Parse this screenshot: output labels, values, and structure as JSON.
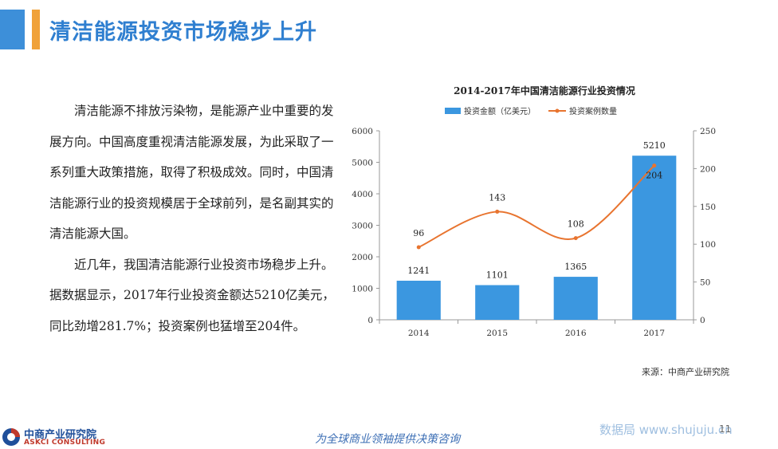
{
  "slide": {
    "title": "清洁能源投资市场稳步上升",
    "paragraphs": [
      "清洁能源不排放污染物，是能源产业中重要的发展方向。中国高度重视清洁能源发展，为此采取了一系列重大政策措施，取得了积极成效。同时，中国清洁能源行业的投资规模居于全球前列，是名副其实的清洁能源大国。",
      "近几年，我国清洁能源行业投资市场稳步上升。据数据显示，2017年行业投资金额达5210亿美元，同比劲增281.7%；投资案例也猛增至204件。"
    ],
    "source": "来源：中商产业研究院",
    "slogan": "为全球商业领袖提供决策咨询",
    "watermark": "数据局 www.shujuju.cn",
    "page_number": "11",
    "logo_cn": "中商产业研究院",
    "logo_en": "ASKCI CONSULTING"
  },
  "colors": {
    "title": "#2f7fd0",
    "accent_blue": "#3d8fd9",
    "accent_orange": "#f0a23a",
    "bar": "#3b97e0",
    "line": "#e8742f"
  },
  "chart_data": {
    "type": "bar",
    "title": "2014-2017年中国清洁能源行业投资情况",
    "categories": [
      "2014",
      "2015",
      "2016",
      "2017"
    ],
    "series": [
      {
        "name": "投资金额（亿美元）",
        "type": "bar",
        "axis": "left",
        "values": [
          1241,
          1101,
          1365,
          5210
        ]
      },
      {
        "name": "投资案例数量",
        "type": "line",
        "axis": "right",
        "values": [
          96,
          143,
          108,
          204
        ]
      }
    ],
    "ylim_left": [
      0,
      6000
    ],
    "yticks_left": [
      "0",
      "1000",
      "2000",
      "3000",
      "4000",
      "5000",
      "6000"
    ],
    "ylim_right": [
      0,
      250
    ],
    "yticks_right": [
      "0",
      "50",
      "100",
      "150",
      "200",
      "250"
    ],
    "legend_position": "top"
  }
}
